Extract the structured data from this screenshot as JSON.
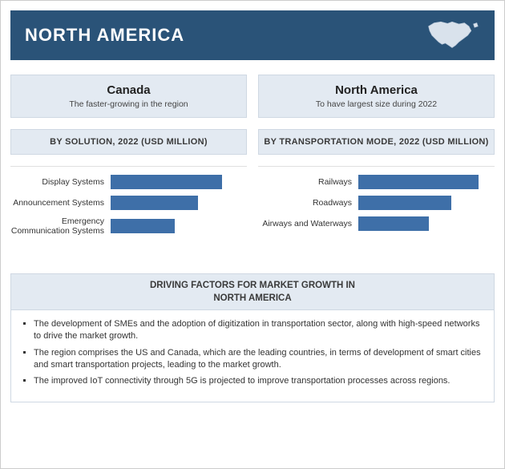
{
  "header": {
    "title": "NORTH AMERICA",
    "bg_color": "#2a5378",
    "text_color": "#ffffff",
    "map_fill": "#d9e2ec"
  },
  "columns": {
    "left": {
      "country": {
        "title": "Canada",
        "subtitle": "The faster-growing in the region"
      },
      "section": "BY SOLUTION, 2022 (USD MILLION)"
    },
    "right": {
      "country": {
        "title": "North America",
        "subtitle": "To have largest size during 2022"
      },
      "section": "BY TRANSPORTATION MODE, 2022 (USD MILLION)"
    }
  },
  "chart_left": {
    "type": "bar",
    "bar_color": "#3e6fa8",
    "max": 100,
    "bars": [
      {
        "label": "Display Systems",
        "value": 82
      },
      {
        "label": "Announcement Systems",
        "value": 64
      },
      {
        "label": "Emergency Communication Systems",
        "value": 47
      }
    ]
  },
  "chart_right": {
    "type": "bar",
    "bar_color": "#3e6fa8",
    "max": 100,
    "bars": [
      {
        "label": "Railways",
        "value": 88
      },
      {
        "label": "Roadways",
        "value": 68
      },
      {
        "label": "Airways and Waterways",
        "value": 52
      }
    ]
  },
  "driving": {
    "head_line1": "DRIVING FACTORS FOR MARKET GROWTH IN",
    "head_line2": "NORTH AMERICA",
    "bullets": [
      "The development of SMEs and the adoption of digitization in transportation sector, along with high-speed networks to drive the market growth.",
      "The region comprises the US and Canada, which are the leading countries, in terms of development of smart cities and smart transportation projects, leading to the market growth.",
      "The improved IoT connectivity through 5G is projected to improve transportation processes across regions."
    ]
  },
  "style": {
    "panel_bg": "#e3eaf2",
    "panel_border": "#cfd8e3"
  }
}
